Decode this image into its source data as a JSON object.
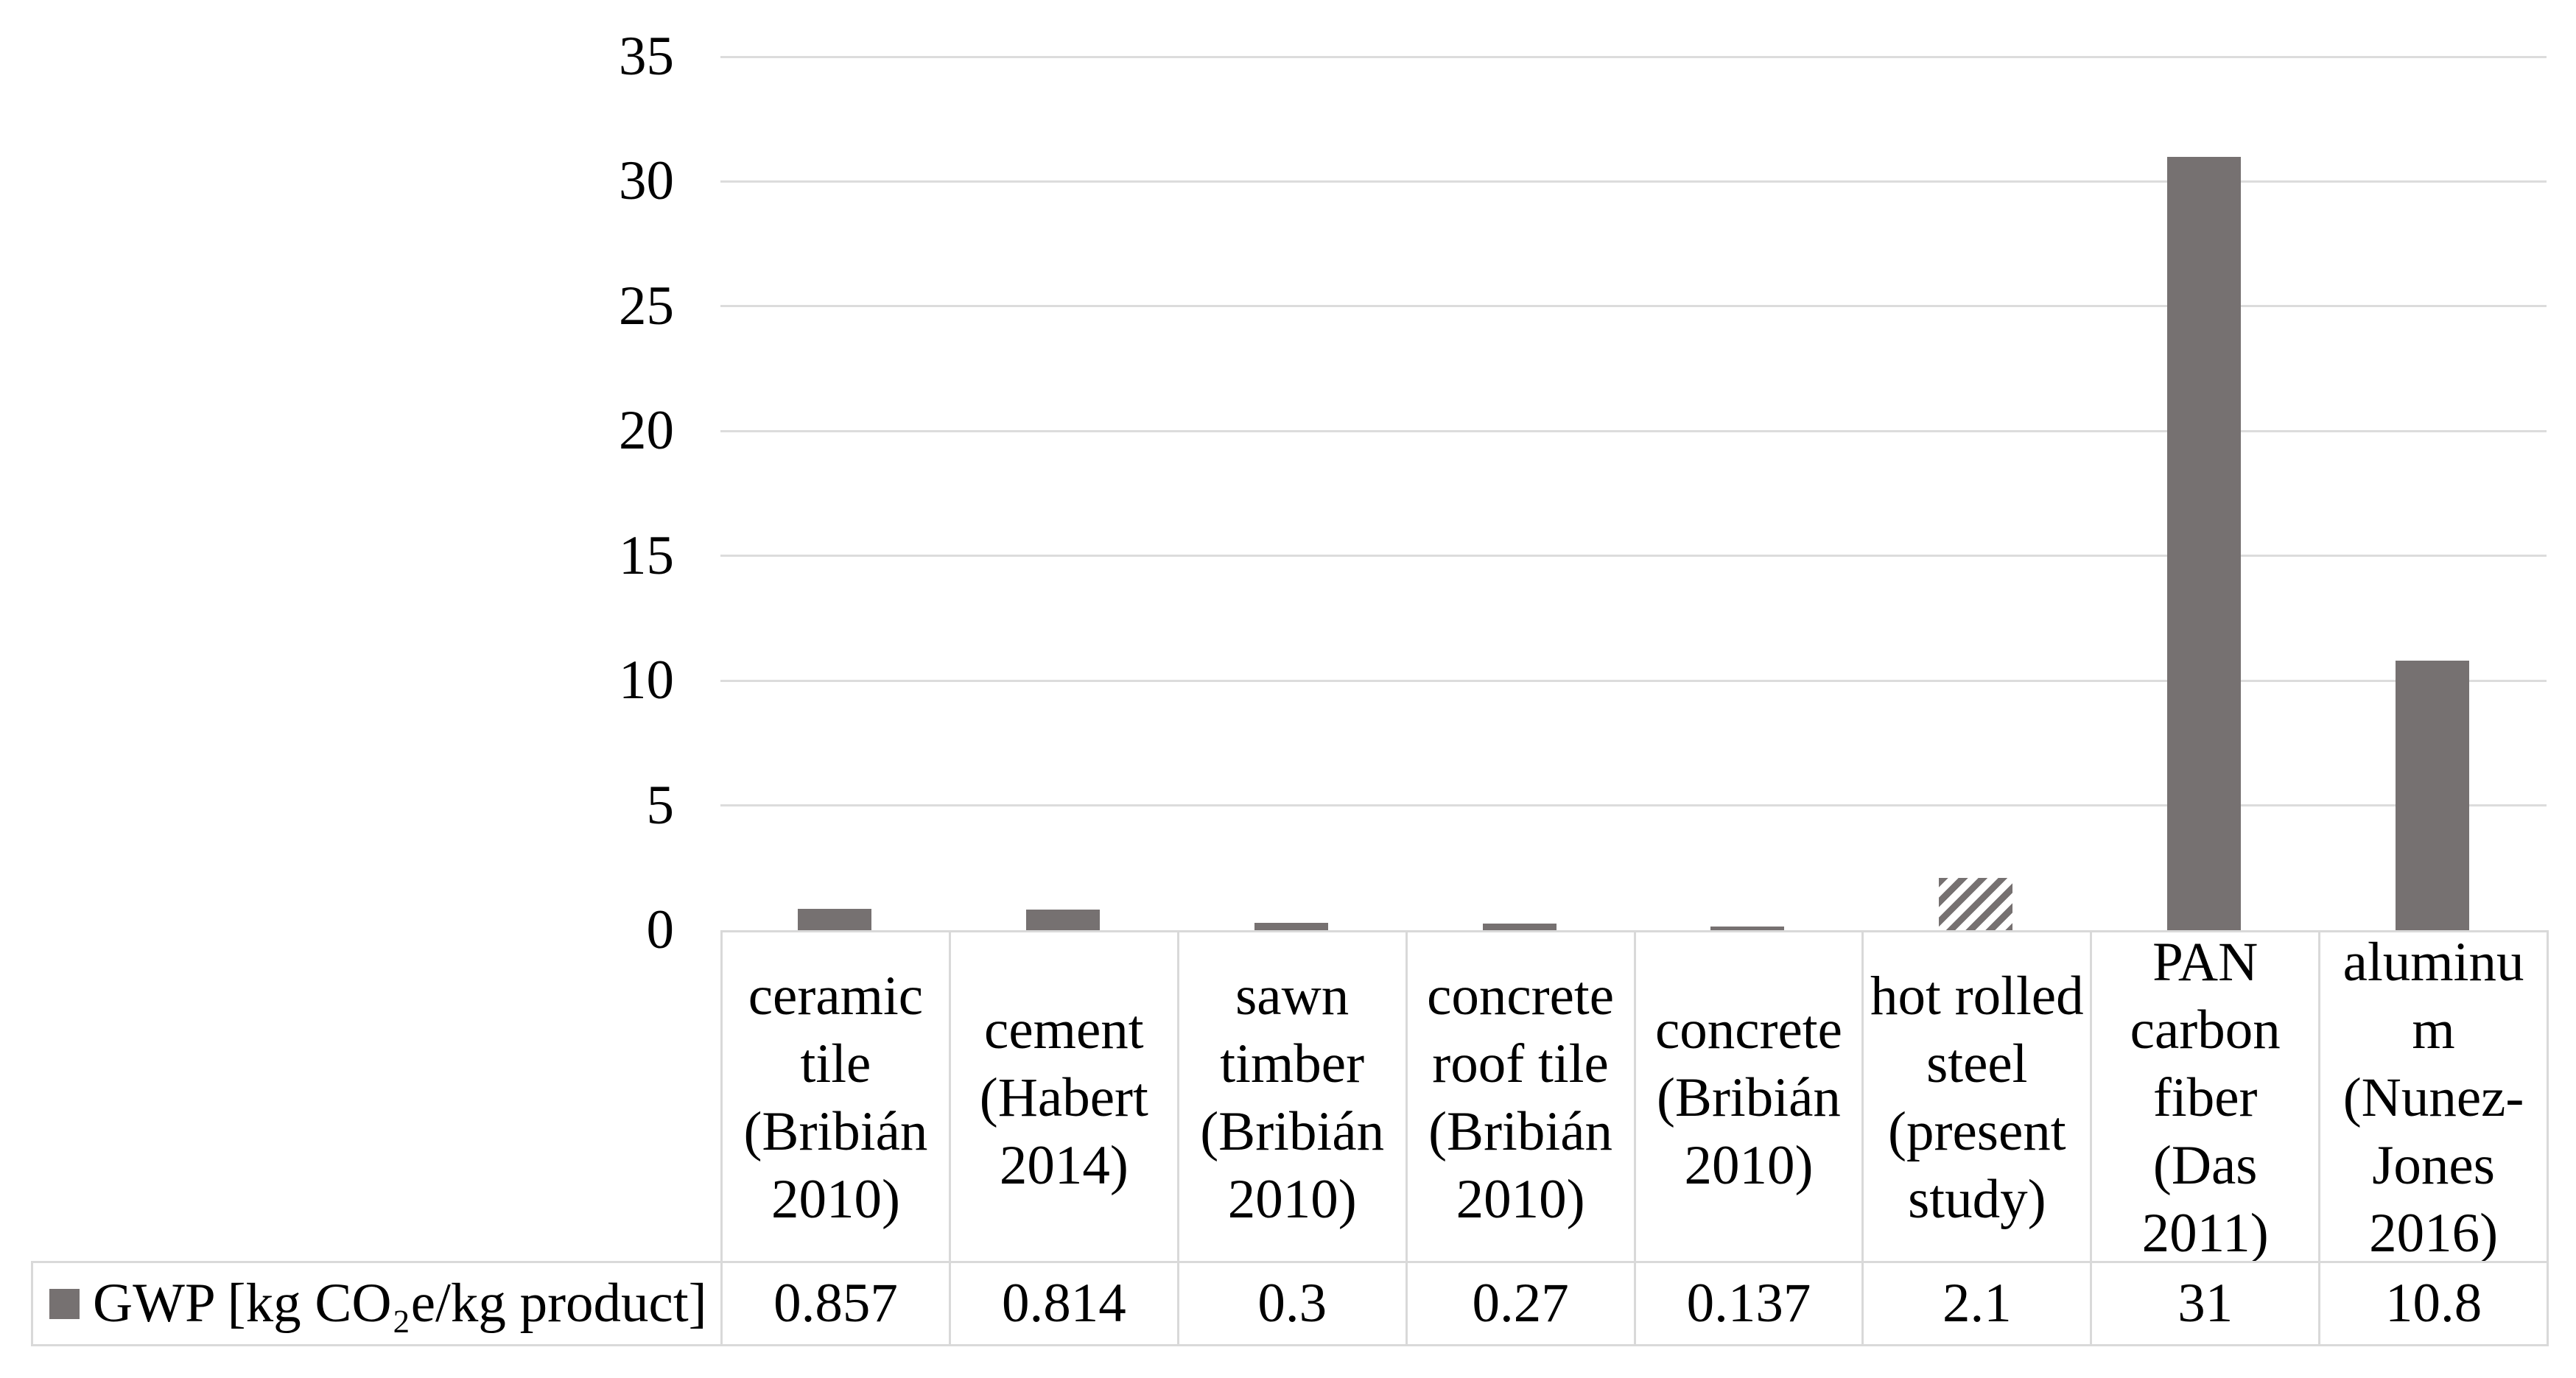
{
  "figure": {
    "background": "#ffffff"
  },
  "chart_data": {
    "type": "bar",
    "title": "",
    "categories": [
      "ceramic\ntile\n(Bribián\n2010)",
      "cement\n(Habert\n2014)",
      "sawn\ntimber\n(Bribián\n2010)",
      "concrete\nroof tile\n(Bribián\n2010)",
      "concrete\n(Bribián\n2010)",
      "hot rolled\nsteel\n(present\nstudy)",
      "PAN\ncarbon\nfiber\n(Das\n2011)",
      "aluminu\nm\n(Nunez-\nJones\n2016)"
    ],
    "series": [
      {
        "name": "GWP [kg CO₂e/kg product]",
        "values": [
          0.857,
          0.814,
          0.3,
          0.27,
          0.137,
          2.1,
          31,
          10.8
        ],
        "display_values": [
          "0.857",
          "0.814",
          "0.3",
          "0.27",
          "0.137",
          "2.1",
          "31",
          "10.8"
        ]
      }
    ],
    "hatched_category_index": 5,
    "xlabel": "",
    "ylabel": "",
    "ylim": [
      0,
      35
    ],
    "yticks": [
      35,
      30,
      25,
      20,
      15,
      10,
      5,
      0
    ],
    "grid": true,
    "legend_position": "bottom table row",
    "colors": {
      "bar_fill": "#767171",
      "hatch_background": "#ffffff",
      "gridline": "#dcdcdc",
      "table_border": "#d9d9d9",
      "text": "#000000"
    }
  }
}
